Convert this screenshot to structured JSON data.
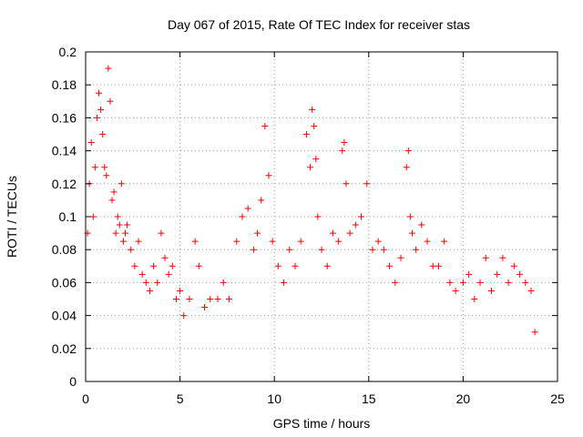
{
  "chart_data": {
    "type": "scatter",
    "title": "Day 067 of 2015, Rate Of TEC Index for receiver stas",
    "xlabel": "GPS time / hours",
    "ylabel": "ROTI / TECUs",
    "xlim": [
      0,
      25
    ],
    "ylim": [
      0,
      0.2
    ],
    "x_ticks": [
      "0",
      "5",
      "10",
      "15",
      "20",
      "25"
    ],
    "y_ticks": [
      "0",
      "0.02",
      "0.04",
      "0.06",
      "0.08",
      "0.1",
      "0.12",
      "0.14",
      "0.16",
      "0.18",
      "0.2"
    ],
    "grid": true,
    "marker": "plus",
    "color": "#ff0000",
    "series": [
      {
        "x": [
          0.1,
          0.2,
          0.3,
          0.4,
          0.5,
          0.6,
          0.7,
          0.8,
          0.9,
          1.0,
          1.1,
          1.2,
          1.3,
          1.4,
          1.5,
          1.6,
          1.7,
          1.8,
          1.9,
          2.0,
          2.1,
          2.2,
          2.4,
          2.6,
          2.8,
          3.0,
          3.2,
          3.4,
          3.6,
          3.8,
          4.0,
          4.2,
          4.4,
          4.6,
          4.8,
          5.0,
          5.2,
          5.5,
          5.8,
          6.0,
          6.3,
          6.6,
          7.0,
          7.3,
          7.6,
          8.0,
          8.3,
          8.6,
          8.9,
          9.1,
          9.3,
          9.5,
          9.7,
          9.9,
          10.2,
          10.5,
          10.8,
          11.1,
          11.4,
          11.7,
          11.9,
          12.0,
          12.1,
          12.2,
          12.3,
          12.5,
          12.8,
          13.1,
          13.4,
          13.6,
          13.7,
          13.8,
          14.0,
          14.3,
          14.6,
          14.9,
          15.2,
          15.5,
          15.8,
          16.1,
          16.4,
          16.7,
          17.0,
          17.1,
          17.2,
          17.3,
          17.5,
          17.8,
          18.1,
          18.4,
          18.7,
          19.0,
          19.3,
          19.6,
          20.0,
          20.3,
          20.6,
          20.9,
          21.2,
          21.5,
          21.8,
          22.1,
          22.4,
          22.7,
          23.0,
          23.3,
          23.6,
          23.8
        ],
        "y": [
          0.09,
          0.12,
          0.145,
          0.1,
          0.13,
          0.16,
          0.175,
          0.165,
          0.15,
          0.13,
          0.125,
          0.19,
          0.17,
          0.11,
          0.115,
          0.09,
          0.1,
          0.095,
          0.12,
          0.085,
          0.09,
          0.095,
          0.08,
          0.07,
          0.085,
          0.065,
          0.06,
          0.055,
          0.07,
          0.06,
          0.09,
          0.075,
          0.065,
          0.07,
          0.05,
          0.055,
          0.04,
          0.05,
          0.085,
          0.07,
          0.045,
          0.05,
          0.05,
          0.06,
          0.05,
          0.085,
          0.1,
          0.105,
          0.08,
          0.09,
          0.11,
          0.155,
          0.125,
          0.085,
          0.07,
          0.06,
          0.08,
          0.07,
          0.085,
          0.15,
          0.13,
          0.165,
          0.155,
          0.135,
          0.1,
          0.08,
          0.07,
          0.09,
          0.085,
          0.14,
          0.145,
          0.12,
          0.09,
          0.095,
          0.1,
          0.12,
          0.08,
          0.085,
          0.08,
          0.07,
          0.06,
          0.075,
          0.13,
          0.14,
          0.1,
          0.09,
          0.08,
          0.095,
          0.085,
          0.07,
          0.07,
          0.085,
          0.06,
          0.055,
          0.06,
          0.065,
          0.05,
          0.06,
          0.075,
          0.055,
          0.065,
          0.075,
          0.06,
          0.07,
          0.065,
          0.06,
          0.055,
          0.03
        ]
      }
    ]
  }
}
